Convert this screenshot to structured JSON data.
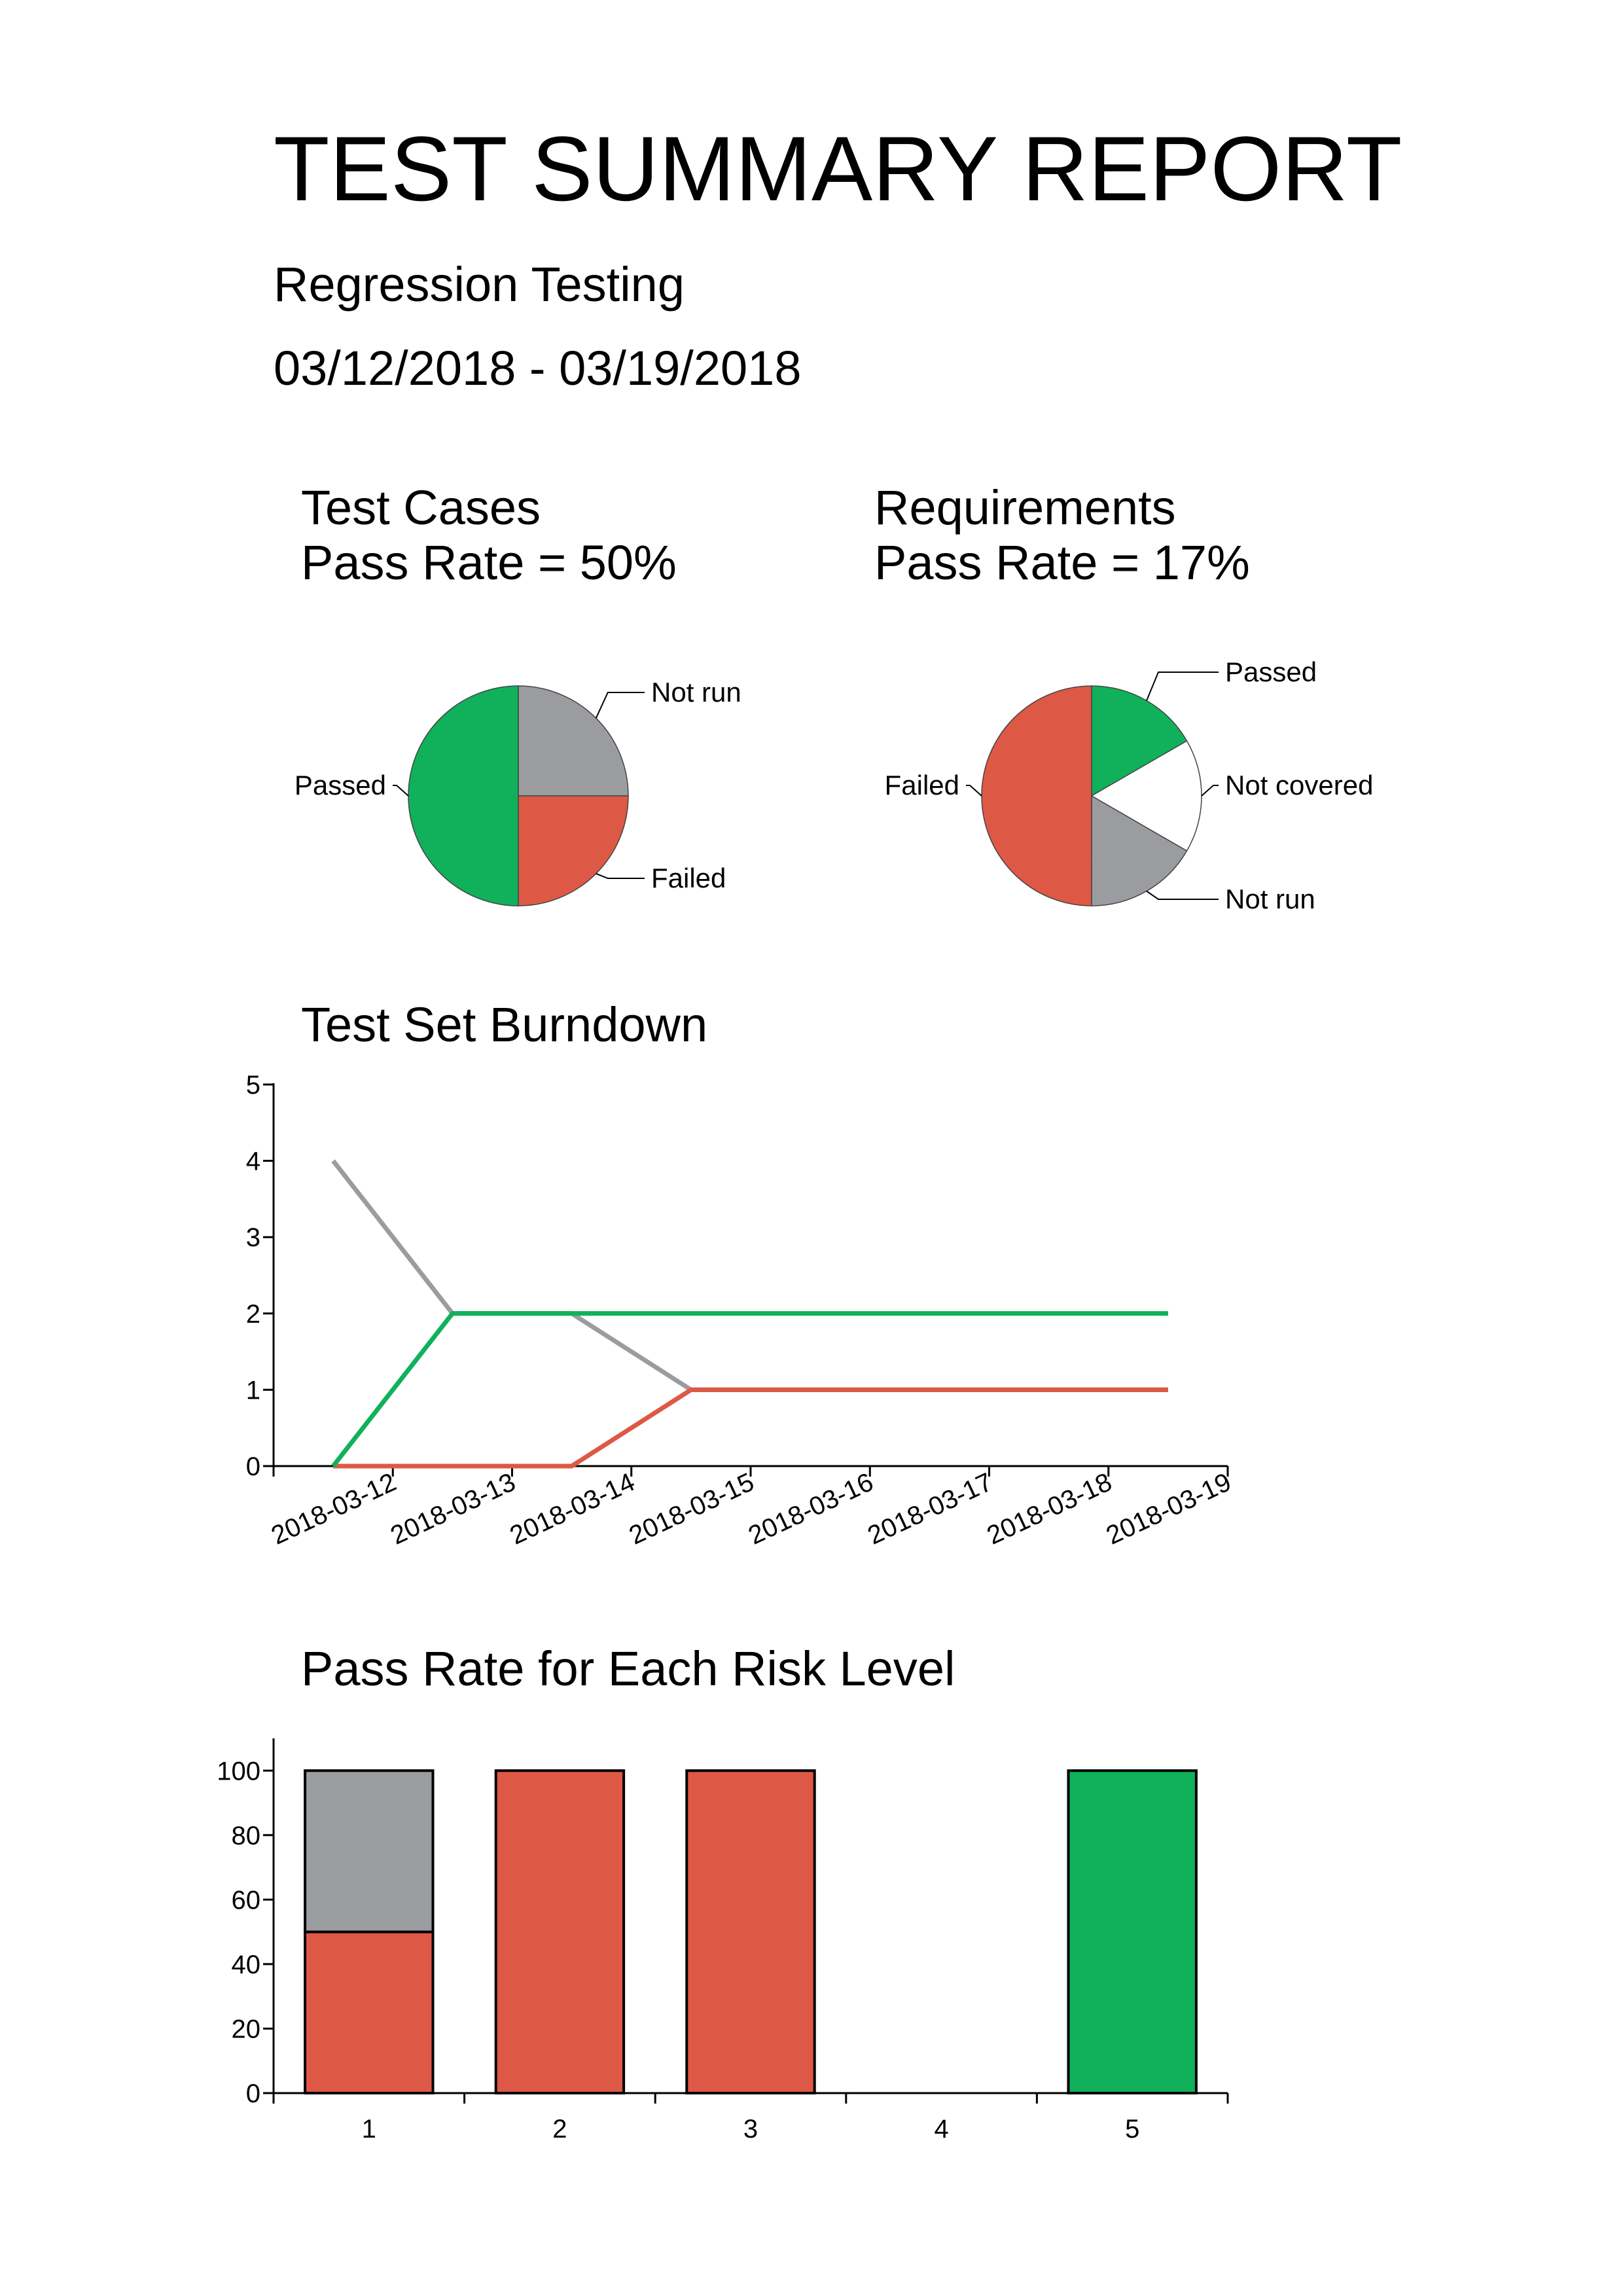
{
  "header": {
    "title": "TEST SUMMARY REPORT",
    "subtitle": "Regression Testing",
    "date_range": "03/12/2018 - 03/19/2018"
  },
  "colors": {
    "passed": "#10b15a",
    "failed": "#de5846",
    "not_run": "#9a9ca0",
    "not_covered": "#ffffff"
  },
  "chart_data": [
    {
      "type": "pie",
      "title": "Test Cases",
      "subtitle": "Pass Rate = 50%",
      "slices": [
        {
          "label": "Not run",
          "value": 25,
          "color": "#9a9ca0"
        },
        {
          "label": "Failed",
          "value": 25,
          "color": "#de5846"
        },
        {
          "label": "Passed",
          "value": 50,
          "color": "#10b15a"
        }
      ]
    },
    {
      "type": "pie",
      "title": "Requirements",
      "subtitle": "Pass Rate = 17%",
      "slices": [
        {
          "label": "Passed",
          "value": 16.67,
          "color": "#10b15a"
        },
        {
          "label": "Not covered",
          "value": 16.67,
          "color": "#ffffff"
        },
        {
          "label": "Not run",
          "value": 16.67,
          "color": "#9a9ca0"
        },
        {
          "label": "Failed",
          "value": 50,
          "color": "#de5846"
        }
      ]
    },
    {
      "type": "line",
      "title": "Test Set Burndown",
      "categories": [
        "2018-03-12",
        "2018-03-13",
        "2018-03-14",
        "2018-03-15",
        "2018-03-16",
        "2018-03-17",
        "2018-03-18",
        "2018-03-19"
      ],
      "ylim": [
        0,
        5
      ],
      "yticks": [
        0,
        1,
        2,
        3,
        4,
        5
      ],
      "series": [
        {
          "color": "#9a9ca0",
          "values": [
            4,
            2,
            2,
            1,
            1,
            1,
            1,
            1
          ]
        },
        {
          "color": "#de5846",
          "values": [
            0,
            0,
            0,
            1,
            1,
            1,
            1,
            1
          ]
        },
        {
          "color": "#10b15a",
          "values": [
            0,
            2,
            2,
            2,
            2,
            2,
            2,
            2
          ]
        }
      ],
      "grid": false
    },
    {
      "type": "bar",
      "title": "Pass Rate for Each Risk Level",
      "categories": [
        "1",
        "2",
        "3",
        "4",
        "5"
      ],
      "ylim": [
        0,
        110
      ],
      "yticks": [
        0,
        20,
        40,
        60,
        80,
        100
      ],
      "stacked": true,
      "series": [
        {
          "color": "#10b15a",
          "values": [
            0,
            0,
            0,
            0,
            100
          ]
        },
        {
          "color": "#de5846",
          "values": [
            50,
            100,
            100,
            0,
            0
          ]
        },
        {
          "color": "#9a9ca0",
          "values": [
            50,
            0,
            0,
            0,
            0
          ]
        }
      ],
      "grid": false
    }
  ]
}
